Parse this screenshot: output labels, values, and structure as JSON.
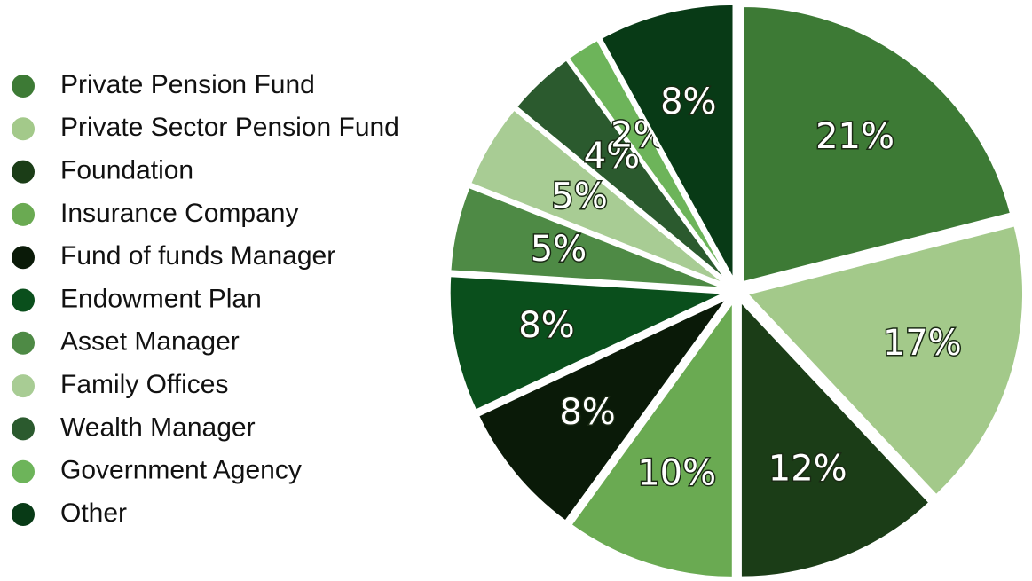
{
  "chart_data": {
    "type": "pie",
    "categories": [
      "Private Pension Fund",
      "Private Sector Pension Fund",
      "Foundation",
      "Insurance Company",
      "Fund of funds Manager",
      "Endowment Plan",
      "Asset Manager",
      "Family Offices",
      "Wealth Manager",
      "Government Agency",
      "Other"
    ],
    "values": [
      21,
      17,
      12,
      10,
      8,
      8,
      5,
      5,
      4,
      2,
      8
    ],
    "value_labels": [
      "21%",
      "17%",
      "12%",
      "10%",
      "8%",
      "8%",
      "5%",
      "5%",
      "4%",
      "2%",
      "8%"
    ],
    "colors": [
      "#3d7a35",
      "#a3c98a",
      "#1b3d17",
      "#6aaa52",
      "#0a1a08",
      "#0a4f1c",
      "#4e8a45",
      "#a8cc94",
      "#2b5a2e",
      "#6db45a",
      "#083a16"
    ]
  }
}
